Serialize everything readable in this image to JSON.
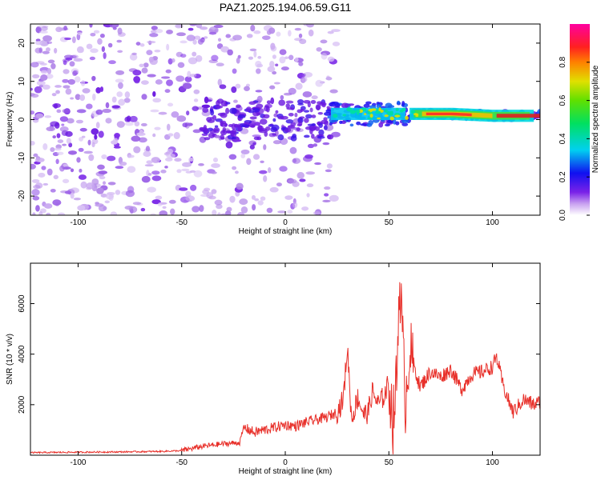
{
  "title": "PAZ1.2025.194.06.59.G11",
  "colors": {
    "snr_line": "#e8302a",
    "background": "#ffffff",
    "axis": "#000000"
  },
  "chart_data": [
    {
      "type": "heatmap",
      "xlabel": "Height of straight line (km)",
      "ylabel": "Frequency (Hz)",
      "xlim": [
        -123,
        123
      ],
      "ylim": [
        -25,
        25
      ],
      "xticks": [
        -100,
        -50,
        0,
        50,
        100
      ],
      "xtick_labels": [
        "-100",
        "-50",
        "0",
        "50",
        "100"
      ],
      "yticks": [
        -20,
        -10,
        0,
        10,
        20
      ],
      "ytick_labels": [
        "-20",
        "-10",
        "0",
        "10",
        "20"
      ],
      "grid": false,
      "colorbar": {
        "label": "Normalized spectral amplitude",
        "range": [
          0,
          1
        ],
        "ticks": [
          0.0,
          0.2,
          0.4,
          0.6,
          0.8
        ],
        "tick_labels": [
          "0.0",
          "0.2",
          "0.4",
          "0.6",
          "0.8"
        ],
        "colormap": "rainbow (white → purple → blue → cyan → green → yellow → red → magenta)"
      },
      "features": {
        "noise_region_x": [
          -123,
          20
        ],
        "noise_freq_range": [
          -25,
          25
        ],
        "signal_trace": {
          "x": [
            20,
            40,
            60,
            80,
            100,
            120
          ],
          "frequency": [
            1.5,
            1.5,
            1.5,
            1.5,
            1.0,
            1.0
          ]
        }
      }
    },
    {
      "type": "line",
      "xlabel": "Height of straight line (km)",
      "ylabel": "SNR (10 * v/v)",
      "xlim": [
        -123,
        123
      ],
      "ylim": [
        0,
        7600
      ],
      "xticks": [
        -100,
        -50,
        0,
        50,
        100
      ],
      "xtick_labels": [
        "-100",
        "-50",
        "0",
        "50",
        "100"
      ],
      "yticks": [
        2000,
        4000,
        6000
      ],
      "ytick_labels": [
        "2000",
        "4000",
        "6000"
      ],
      "grid": false,
      "series": [
        {
          "x": [
            -123,
            -100,
            -80,
            -60,
            -50,
            -40,
            -30,
            -22,
            -20,
            -15,
            -10,
            -5,
            0,
            5,
            10,
            15,
            20,
            25,
            28,
            30,
            32,
            35,
            38,
            40,
            42,
            45,
            48,
            50,
            52,
            54,
            55,
            56,
            57,
            58,
            60,
            62,
            65,
            70,
            75,
            80,
            85,
            90,
            95,
            100,
            102,
            105,
            108,
            110,
            115,
            120,
            123
          ],
          "y": [
            100,
            120,
            130,
            150,
            180,
            350,
            450,
            500,
            1100,
            900,
            1000,
            1100,
            1200,
            1150,
            1300,
            1400,
            1500,
            1700,
            2200,
            4300,
            1400,
            2300,
            1600,
            1700,
            2500,
            2000,
            2400,
            2900,
            1300,
            3300,
            7000,
            5800,
            3900,
            2100,
            4200,
            3600,
            2700,
            3300,
            3100,
            3400,
            2600,
            3200,
            3300,
            3500,
            3900,
            2800,
            2100,
            1700,
            2200,
            2000,
            2100
          ]
        }
      ]
    }
  ]
}
